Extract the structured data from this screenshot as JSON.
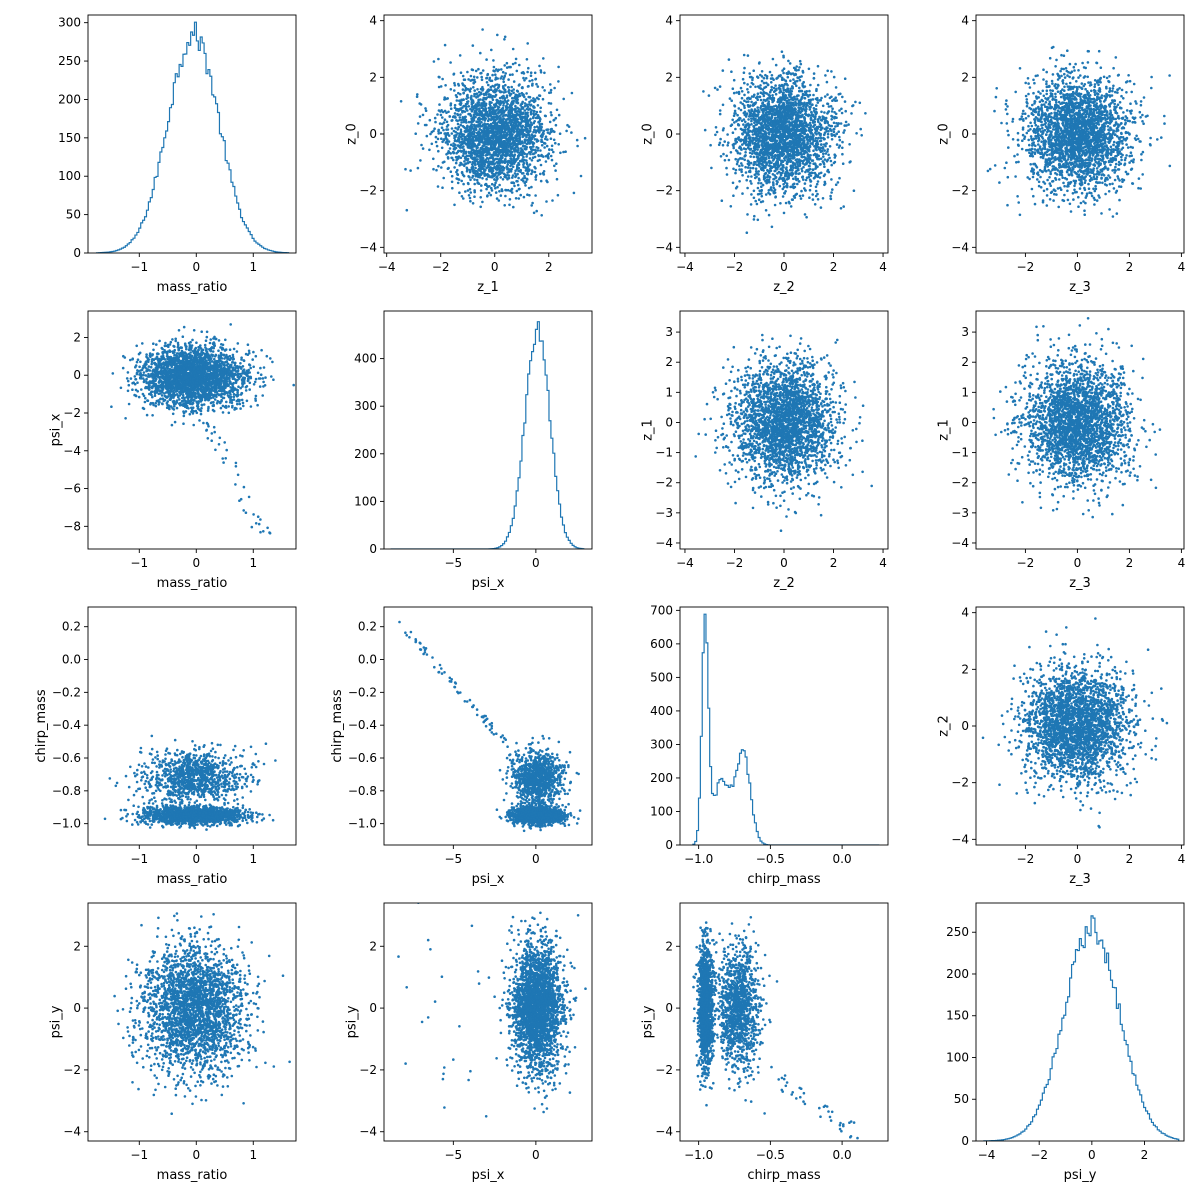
{
  "colors": {
    "series": "#1f77b4",
    "axis": "#000000",
    "background": "#ffffff"
  },
  "chart_data": [
    {
      "id": "p00",
      "type": "histogram",
      "xlabel": "mass_ratio",
      "ylabel": "",
      "xlim": [
        -1.9,
        1.75
      ],
      "ylim": [
        0,
        310
      ],
      "xticks": [
        -1,
        0,
        1
      ],
      "yticks": [
        0,
        50,
        100,
        150,
        200,
        250,
        300
      ],
      "distribution": {
        "kind": "gauss",
        "mean": -0.05,
        "sd": 0.45,
        "peak": 285,
        "min": -1.75,
        "max": 1.62,
        "bins": 100
      }
    },
    {
      "id": "p01",
      "type": "scatter",
      "xlabel": "z_1",
      "ylabel": "z_0",
      "xlim": [
        -4.1,
        3.6
      ],
      "ylim": [
        -4.2,
        4.2
      ],
      "xticks": [
        -4,
        -2,
        0,
        2
      ],
      "yticks": [
        -4,
        -2,
        0,
        2,
        4
      ],
      "distribution": {
        "kind": "gauss2d",
        "mx": 0,
        "my": 0,
        "sx": 1,
        "sy": 1,
        "n": 2600
      }
    },
    {
      "id": "p02",
      "type": "scatter",
      "xlabel": "z_2",
      "ylabel": "z_0",
      "xlim": [
        -4.2,
        4.2
      ],
      "ylim": [
        -4.2,
        4.2
      ],
      "xticks": [
        -4,
        -2,
        0,
        2,
        4
      ],
      "yticks": [
        -4,
        -2,
        0,
        2,
        4
      ],
      "distribution": {
        "kind": "gauss2d",
        "mx": 0,
        "my": 0,
        "sx": 1,
        "sy": 1,
        "n": 2600
      }
    },
    {
      "id": "p03",
      "type": "scatter",
      "xlabel": "z_3",
      "ylabel": "z_0",
      "xlim": [
        -3.9,
        4.1
      ],
      "ylim": [
        -4.2,
        4.2
      ],
      "xticks": [
        -2,
        0,
        2,
        4
      ],
      "yticks": [
        -4,
        -2,
        0,
        2,
        4
      ],
      "distribution": {
        "kind": "gauss2d",
        "mx": 0,
        "my": 0,
        "sx": 1,
        "sy": 1,
        "n": 2600
      }
    },
    {
      "id": "p10",
      "type": "scatter",
      "xlabel": "mass_ratio",
      "ylabel": "psi_x",
      "xlim": [
        -1.9,
        1.75
      ],
      "ylim": [
        -9.2,
        3.4
      ],
      "xticks": [
        -1,
        0,
        1
      ],
      "yticks": [
        -8,
        -6,
        -4,
        -2,
        0,
        2
      ],
      "distribution": {
        "kind": "gauss2d",
        "mx": -0.05,
        "my": -0.1,
        "sx": 0.45,
        "sy": 0.8,
        "n": 2600,
        "tail": "down-right"
      }
    },
    {
      "id": "p11",
      "type": "histogram",
      "xlabel": "psi_x",
      "ylabel": "",
      "xlim": [
        -9.2,
        3.4
      ],
      "ylim": [
        0,
        500
      ],
      "xticks": [
        -5,
        0
      ],
      "yticks": [
        0,
        100,
        200,
        300,
        400
      ],
      "distribution": {
        "kind": "gauss",
        "mean": 0.1,
        "sd": 0.75,
        "peak": 460,
        "min": -8.8,
        "max": 2.9,
        "bins": 100
      }
    },
    {
      "id": "p12",
      "type": "scatter",
      "xlabel": "z_2",
      "ylabel": "z_1",
      "xlim": [
        -4.2,
        4.2
      ],
      "ylim": [
        -4.2,
        3.7
      ],
      "xticks": [
        -4,
        -2,
        0,
        2,
        4
      ],
      "yticks": [
        -4,
        -3,
        -2,
        -1,
        0,
        1,
        2,
        3
      ],
      "distribution": {
        "kind": "gauss2d",
        "mx": 0,
        "my": 0,
        "sx": 1,
        "sy": 1,
        "n": 2600
      }
    },
    {
      "id": "p13",
      "type": "scatter",
      "xlabel": "z_3",
      "ylabel": "z_1",
      "xlim": [
        -3.9,
        4.1
      ],
      "ylim": [
        -4.2,
        3.7
      ],
      "xticks": [
        -2,
        0,
        2,
        4
      ],
      "yticks": [
        -4,
        -3,
        -2,
        -1,
        0,
        1,
        2,
        3
      ],
      "distribution": {
        "kind": "gauss2d",
        "mx": 0,
        "my": 0,
        "sx": 1,
        "sy": 1,
        "n": 2600
      }
    },
    {
      "id": "p20",
      "type": "scatter",
      "xlabel": "mass_ratio",
      "ylabel": "chirp_mass",
      "xlim": [
        -1.9,
        1.75
      ],
      "ylim": [
        -1.13,
        0.32
      ],
      "xticks": [
        -1,
        0,
        1
      ],
      "yticks": [
        -1.0,
        -0.8,
        -0.6,
        -0.4,
        -0.2,
        0.0,
        0.2
      ],
      "distribution": {
        "kind": "bimodal-x-y",
        "xmean": -0.05,
        "xsd": 0.45,
        "modes": [
          [
            -0.95,
            0.025,
            0.6
          ],
          [
            -0.72,
            0.08,
            0.4
          ]
        ],
        "n": 2600
      }
    },
    {
      "id": "p21",
      "type": "scatter",
      "xlabel": "psi_x",
      "ylabel": "chirp_mass",
      "xlim": [
        -9.2,
        3.4
      ],
      "ylim": [
        -1.13,
        0.32
      ],
      "xticks": [
        -5,
        0
      ],
      "yticks": [
        -1.0,
        -0.8,
        -0.6,
        -0.4,
        -0.2,
        0.0,
        0.2
      ],
      "distribution": {
        "kind": "bimodal-x-y",
        "xmean": 0.1,
        "xsd": 0.75,
        "modes": [
          [
            -0.95,
            0.025,
            0.6
          ],
          [
            -0.72,
            0.08,
            0.4
          ]
        ],
        "n": 2600,
        "tail": "up-left"
      }
    },
    {
      "id": "p22",
      "type": "histogram",
      "xlabel": "chirp_mass",
      "ylabel": "",
      "xlim": [
        -1.13,
        0.32
      ],
      "ylim": [
        0,
        710
      ],
      "xticks": [
        -1.0,
        -0.5,
        0.0
      ],
      "yticks": [
        0,
        100,
        200,
        300,
        400,
        500,
        600,
        700
      ],
      "distribution": {
        "kind": "bimodal",
        "modes": [
          [
            -0.955,
            0.022,
            660
          ],
          [
            -0.84,
            0.06,
            190
          ],
          [
            -0.69,
            0.05,
            270
          ]
        ],
        "min": -1.04,
        "max": 0.26,
        "bins": 100
      }
    },
    {
      "id": "p23",
      "type": "scatter",
      "xlabel": "z_3",
      "ylabel": "z_2",
      "xlim": [
        -3.9,
        4.1
      ],
      "ylim": [
        -4.2,
        4.2
      ],
      "xticks": [
        -2,
        0,
        2,
        4
      ],
      "yticks": [
        -4,
        -2,
        0,
        2,
        4
      ],
      "distribution": {
        "kind": "gauss2d",
        "mx": 0,
        "my": 0,
        "sx": 1,
        "sy": 1,
        "n": 2600
      }
    },
    {
      "id": "p30",
      "type": "scatter",
      "xlabel": "mass_ratio",
      "ylabel": "psi_y",
      "xlim": [
        -1.9,
        1.75
      ],
      "ylim": [
        -4.3,
        3.4
      ],
      "xticks": [
        -1,
        0,
        1
      ],
      "yticks": [
        -4,
        -2,
        0,
        2
      ],
      "distribution": {
        "kind": "gauss2d",
        "mx": -0.05,
        "my": 0,
        "sx": 0.45,
        "sy": 1,
        "n": 2600
      }
    },
    {
      "id": "p31",
      "type": "scatter",
      "xlabel": "psi_x",
      "ylabel": "psi_y",
      "xlim": [
        -9.2,
        3.4
      ],
      "ylim": [
        -4.3,
        3.4
      ],
      "xticks": [
        -5,
        0
      ],
      "yticks": [
        -4,
        -2,
        0,
        2
      ],
      "distribution": {
        "kind": "gauss2d",
        "mx": 0.1,
        "my": 0,
        "sx": 0.75,
        "sy": 1,
        "n": 2600,
        "tail": "left"
      }
    },
    {
      "id": "p32",
      "type": "scatter",
      "xlabel": "chirp_mass",
      "ylabel": "psi_y",
      "xlim": [
        -1.13,
        0.32
      ],
      "ylim": [
        -4.3,
        3.4
      ],
      "xticks": [
        -1.0,
        -0.5,
        0.0
      ],
      "yticks": [
        -4,
        -2,
        0,
        2
      ],
      "distribution": {
        "kind": "bimodal-x",
        "modes": [
          [
            -0.95,
            0.025,
            0.55
          ],
          [
            -0.72,
            0.07,
            0.45
          ]
        ],
        "ysd": 1,
        "n": 2600,
        "tail": "down-right"
      }
    },
    {
      "id": "p33",
      "type": "histogram",
      "xlabel": "psi_y",
      "ylabel": "",
      "xlim": [
        -4.4,
        3.5
      ],
      "ylim": [
        0,
        285
      ],
      "xticks": [
        -4,
        -2,
        0,
        2
      ],
      "yticks": [
        0,
        50,
        100,
        150,
        200,
        250
      ],
      "distribution": {
        "kind": "gauss",
        "mean": 0,
        "sd": 1.05,
        "peak": 255,
        "min": -4.1,
        "max": 3.3,
        "bins": 100
      }
    }
  ]
}
